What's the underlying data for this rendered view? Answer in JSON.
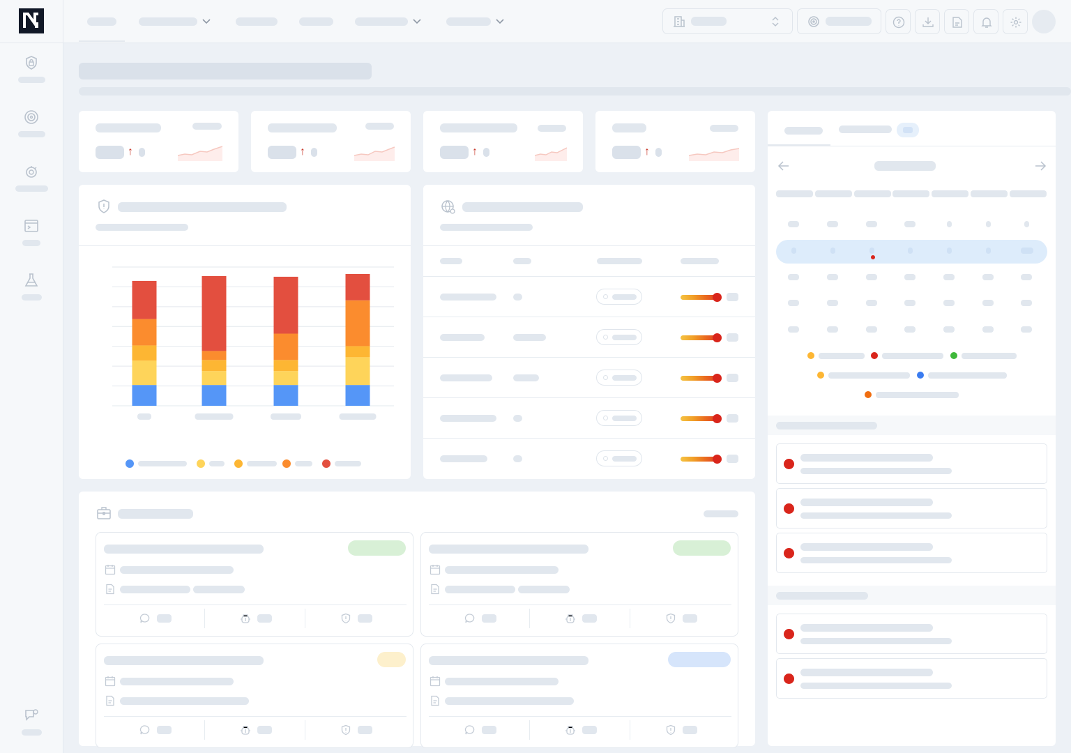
{
  "app": {
    "logo_letter": "N",
    "state": "loading-skeleton"
  },
  "sidebar": {
    "items": [
      {
        "icon": "shield-lock-icon"
      },
      {
        "icon": "radar-target-icon"
      },
      {
        "icon": "bug-gear-icon"
      },
      {
        "icon": "terminal-window-icon"
      },
      {
        "icon": "flask-icon"
      }
    ],
    "footer_icon": "chat-feedback-icon"
  },
  "topbar": {
    "nav_items": [
      {
        "has_dropdown": false,
        "active": true
      },
      {
        "has_dropdown": true
      },
      {
        "has_dropdown": false
      },
      {
        "has_dropdown": false
      },
      {
        "has_dropdown": true
      },
      {
        "has_dropdown": true
      }
    ],
    "org_selector_icon": "building-icon",
    "org_selector_caret": "updown-chevron-icon",
    "scope_selector_icon": "radar-icon",
    "icon_buttons": [
      "help-icon",
      "download-icon",
      "reports-icon",
      "bell-icon",
      "settings-icon"
    ]
  },
  "stats": [
    {
      "trend": "up",
      "trend_symbol": "↑"
    },
    {
      "trend": "up",
      "trend_symbol": "↑"
    },
    {
      "trend": "up",
      "trend_symbol": "↑"
    },
    {
      "trend": "up",
      "trend_symbol": "↑"
    }
  ],
  "colors": {
    "critical": "#e34f3f",
    "high": "#fb8c2e",
    "medium": "#fdb633",
    "low": "#fed45a",
    "info": "#5596f7",
    "alert_dot": "#d9251b",
    "trend_up": "#c73628"
  },
  "chart_data": {
    "type": "bar",
    "stacked": true,
    "categories": [
      "",
      "",
      "",
      ""
    ],
    "series": [
      {
        "color": "#5596f7",
        "values": [
          30,
          30,
          30,
          30
        ]
      },
      {
        "color": "#fed45a",
        "values": [
          35,
          20,
          20,
          40
        ]
      },
      {
        "color": "#fdb633",
        "values": [
          22,
          16,
          16,
          16
        ]
      },
      {
        "color": "#fb8c2e",
        "values": [
          38,
          13,
          38,
          66
        ]
      },
      {
        "color": "#e34f3f",
        "values": [
          55,
          108,
          82,
          38
        ]
      }
    ],
    "ylim": [
      0,
      200
    ],
    "grid": true,
    "legend_position": "bottom"
  },
  "table": {
    "header_icon": "globe-gear-icon",
    "rows": [
      {
        "severity_fraction": 0.9
      },
      {
        "severity_fraction": 0.9
      },
      {
        "severity_fraction": 0.9
      },
      {
        "severity_fraction": 0.9
      },
      {
        "severity_fraction": 0.9
      }
    ]
  },
  "calendar": {
    "prev_icon": "arrow-left-icon",
    "next_icon": "arrow-right-icon",
    "legend_colors": [
      "#fdb633",
      "#d9251b",
      "#3fb83a",
      "#fdb633",
      "#3b7cf0",
      "#f06d10"
    ]
  },
  "alerts": {
    "group_1_count": 3,
    "group_2_count": 2
  },
  "incidents": {
    "header_icon": "briefcase-icon",
    "cards": [
      {
        "tag_color": "#d8f0d6"
      },
      {
        "tag_color": "#d8f0d6"
      },
      {
        "tag_color": "#fdf0cc"
      },
      {
        "tag_color": "#d6e5fb"
      }
    ],
    "footer_icons": [
      "comment-icon",
      "bug-icon",
      "shield-icon"
    ]
  }
}
